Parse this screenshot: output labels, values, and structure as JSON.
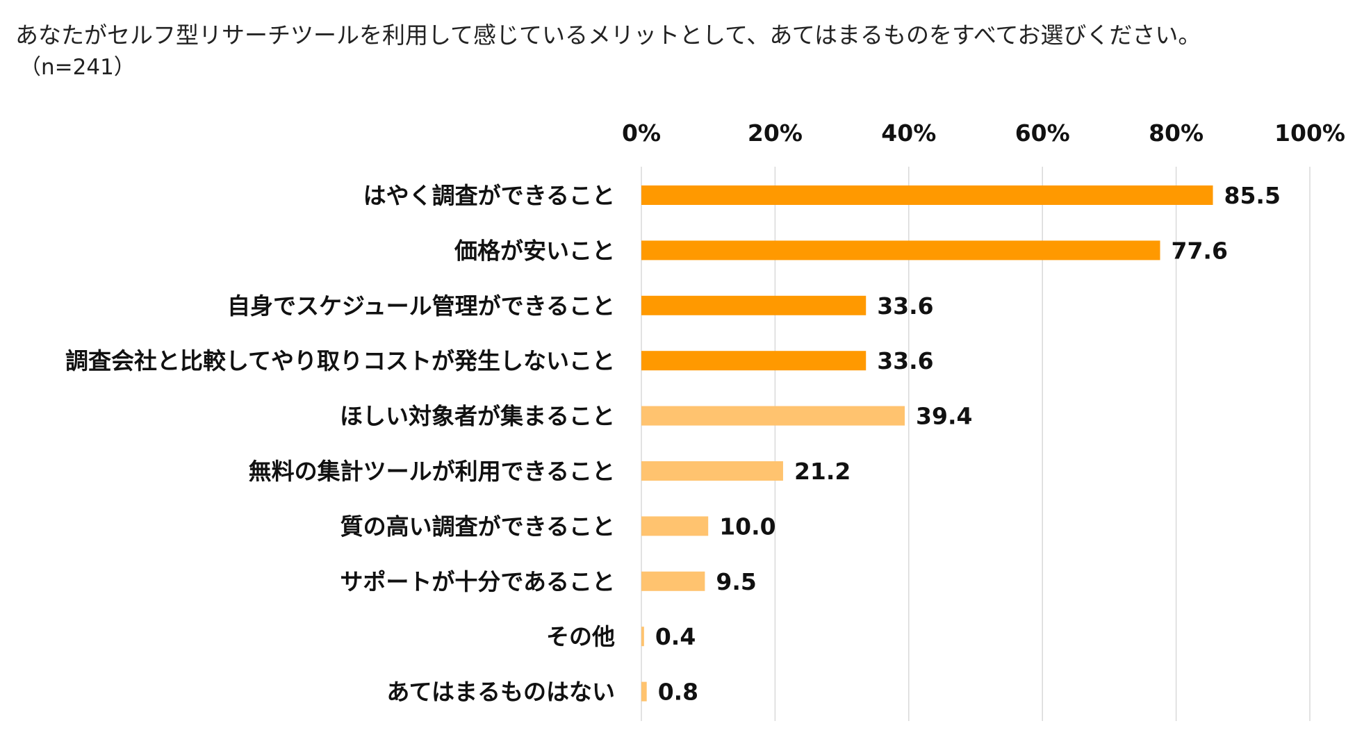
{
  "title": "あなたがセルフ型リサーチツールを利用して感じているメリットとして、あてはまるものをすべてお選びください。",
  "subtitle": "（n=241）",
  "colors": {
    "dark_bar": "#FF9900",
    "light_bar": "#FFC36F",
    "grid": "#D9D9D9"
  },
  "chart_data": {
    "type": "bar",
    "orientation": "horizontal",
    "categories": [
      "はやく調査ができること",
      "価格が安いこと",
      "自身でスケジュール管理ができること",
      "調査会社と比較してやり取りコストが発生しないこと",
      "ほしい対象者が集まること",
      "無料の集計ツールが利用できること",
      "質の高い調査ができること",
      "サポートが十分であること",
      "その他",
      "あてはまるものはない"
    ],
    "values": [
      85.5,
      77.6,
      33.6,
      33.6,
      39.4,
      21.2,
      10.0,
      9.5,
      0.4,
      0.8
    ],
    "value_labels": [
      "85.5",
      "77.6",
      "33.6",
      "33.6",
      "39.4",
      "21.2",
      "10.0",
      "9.5",
      "0.4",
      "0.8"
    ],
    "bar_color_group": [
      "dark",
      "dark",
      "dark",
      "dark",
      "light",
      "light",
      "light",
      "light",
      "light",
      "light"
    ],
    "xlim": [
      0,
      100
    ],
    "x_ticks": [
      0,
      20,
      40,
      60,
      80,
      100
    ],
    "x_tick_labels": [
      "0%",
      "20%",
      "40%",
      "60%",
      "80%",
      "100%"
    ],
    "axis_position": "top",
    "grid": true,
    "legend": "none"
  }
}
